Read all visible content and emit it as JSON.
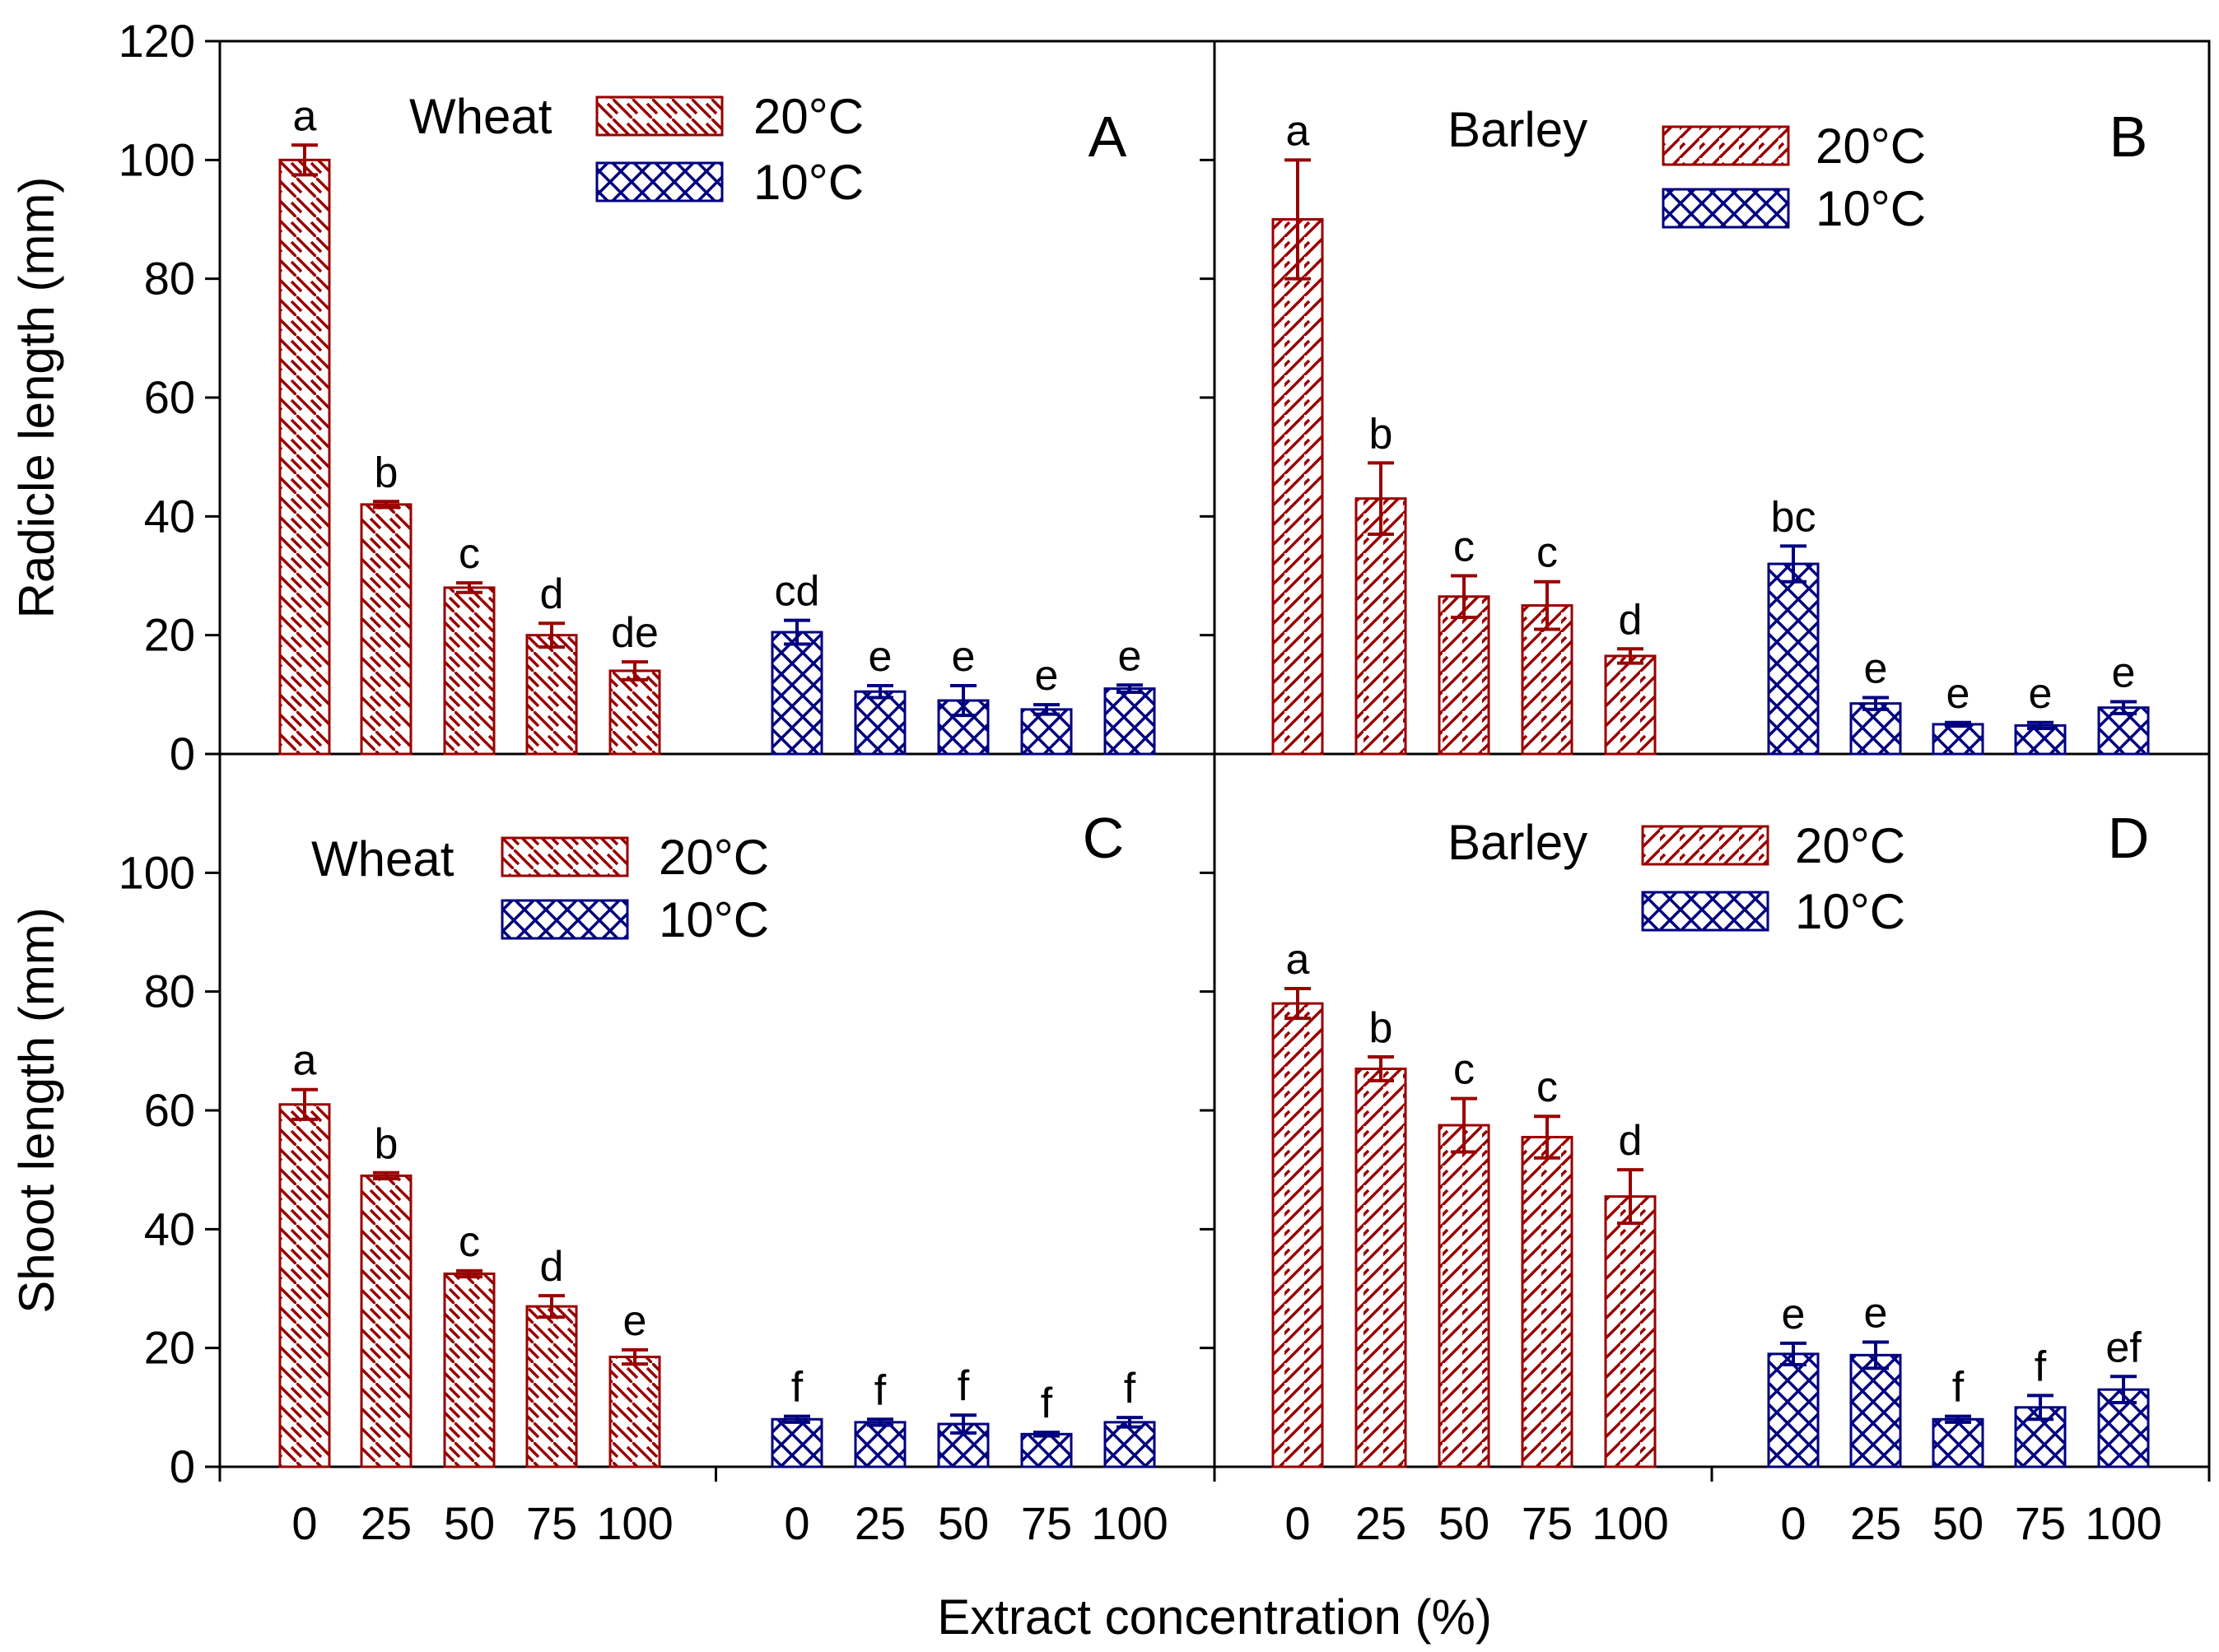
{
  "figure": {
    "xlabel": "Extract concentration (%)"
  },
  "colors": {
    "warm": "#990000",
    "cold": "#000080"
  },
  "legend": {
    "warm_label": "20°C",
    "cold_label": "10°C"
  },
  "chart_data": [
    {
      "type": "bar",
      "panel": "A",
      "crop": "Wheat",
      "ylabel": "Radicle length (mm)",
      "ylim": [
        0,
        120
      ],
      "yticks": [
        0,
        20,
        40,
        60,
        80,
        100,
        120
      ],
      "categories": [
        "0",
        "25",
        "50",
        "75",
        "100"
      ],
      "series": [
        {
          "name": "20°C",
          "values": [
            100,
            42,
            28,
            20,
            14
          ],
          "errors": [
            2.5,
            0.5,
            0.8,
            2,
            1.5
          ],
          "letters": [
            "a",
            "b",
            "c",
            "d",
            "de"
          ]
        },
        {
          "name": "10°C",
          "values": [
            20.5,
            10.5,
            9,
            7.5,
            11
          ],
          "errors": [
            2,
            1,
            2.5,
            0.8,
            0.6
          ],
          "letters": [
            "cd",
            "e",
            "e",
            "e",
            "e"
          ]
        }
      ]
    },
    {
      "type": "bar",
      "panel": "B",
      "crop": "Barley",
      "ylabel": "Radicle length (mm)",
      "ylim": [
        0,
        120
      ],
      "yticks": [
        0,
        20,
        40,
        60,
        80,
        100,
        120
      ],
      "categories": [
        "0",
        "25",
        "50",
        "75",
        "100"
      ],
      "series": [
        {
          "name": "20°C",
          "values": [
            90,
            43,
            26.5,
            25,
            16.5
          ],
          "errors": [
            10,
            6,
            3.5,
            4,
            1.2
          ],
          "letters": [
            "a",
            "b",
            "c",
            "c",
            "d"
          ]
        },
        {
          "name": "10°C",
          "values": [
            32,
            8.5,
            5,
            4.8,
            7.8
          ],
          "errors": [
            3,
            1,
            0.3,
            0.5,
            1
          ],
          "letters": [
            "bc",
            "e",
            "e",
            "e",
            "e"
          ]
        }
      ]
    },
    {
      "type": "bar",
      "panel": "C",
      "crop": "Wheat",
      "ylabel": "Shoot length (mm)",
      "ylim": [
        0,
        120
      ],
      "yticks": [
        0,
        20,
        40,
        60,
        80,
        100
      ],
      "categories": [
        "0",
        "25",
        "50",
        "75",
        "100"
      ],
      "series": [
        {
          "name": "20°C",
          "values": [
            61,
            49,
            32.5,
            27,
            18.5
          ],
          "errors": [
            2.5,
            0.5,
            0.5,
            1.8,
            1.2
          ],
          "letters": [
            "a",
            "b",
            "c",
            "d",
            "e"
          ]
        },
        {
          "name": "10°C",
          "values": [
            8,
            7.5,
            7.2,
            5.5,
            7.5
          ],
          "errors": [
            0.5,
            0.5,
            1.5,
            0.3,
            0.8
          ],
          "letters": [
            "f",
            "f",
            "f",
            "f",
            "f"
          ]
        }
      ]
    },
    {
      "type": "bar",
      "panel": "D",
      "crop": "Barley",
      "ylabel": "Shoot length (mm)",
      "ylim": [
        0,
        120
      ],
      "yticks": [
        0,
        20,
        40,
        60,
        80,
        100
      ],
      "categories": [
        "0",
        "25",
        "50",
        "75",
        "100"
      ],
      "series": [
        {
          "name": "20°C",
          "values": [
            78,
            67,
            57.5,
            55.5,
            45.5
          ],
          "errors": [
            2.5,
            2,
            4.5,
            3.5,
            4.5
          ],
          "letters": [
            "a",
            "b",
            "c",
            "c",
            "d"
          ]
        },
        {
          "name": "10°C",
          "values": [
            19,
            18.8,
            8,
            10,
            13
          ],
          "errors": [
            1.8,
            2.2,
            0.5,
            2,
            2.2
          ],
          "letters": [
            "e",
            "e",
            "f",
            "f",
            "ef"
          ]
        }
      ]
    }
  ]
}
